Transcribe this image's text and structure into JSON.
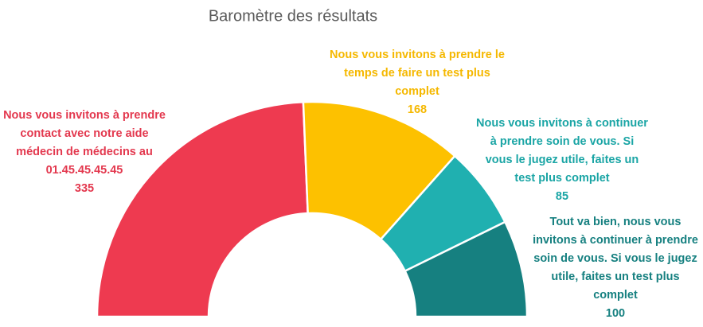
{
  "chart_data": {
    "type": "half-donut",
    "title": "Baromètre des résultats",
    "categories": [
      "Nous vous invitons à prendre contact avec notre aide médecin de médecins au 01.45.45.45.45",
      "Nous vous invitons à prendre le temps de faire un test plus complet",
      "Nous vous invitons à continuer à prendre soin de vous. Si vous le jugez utile, faites un test plus complet",
      "Tout va bien, nous vous invitons à continuer à prendre soin de vous. Si vous le jugez utile, faites un test plus complet"
    ],
    "values": [
      335,
      168,
      85,
      100
    ],
    "colors": [
      "#ee3a50",
      "#fdc100",
      "#20b0b0",
      "#168080"
    ]
  }
}
